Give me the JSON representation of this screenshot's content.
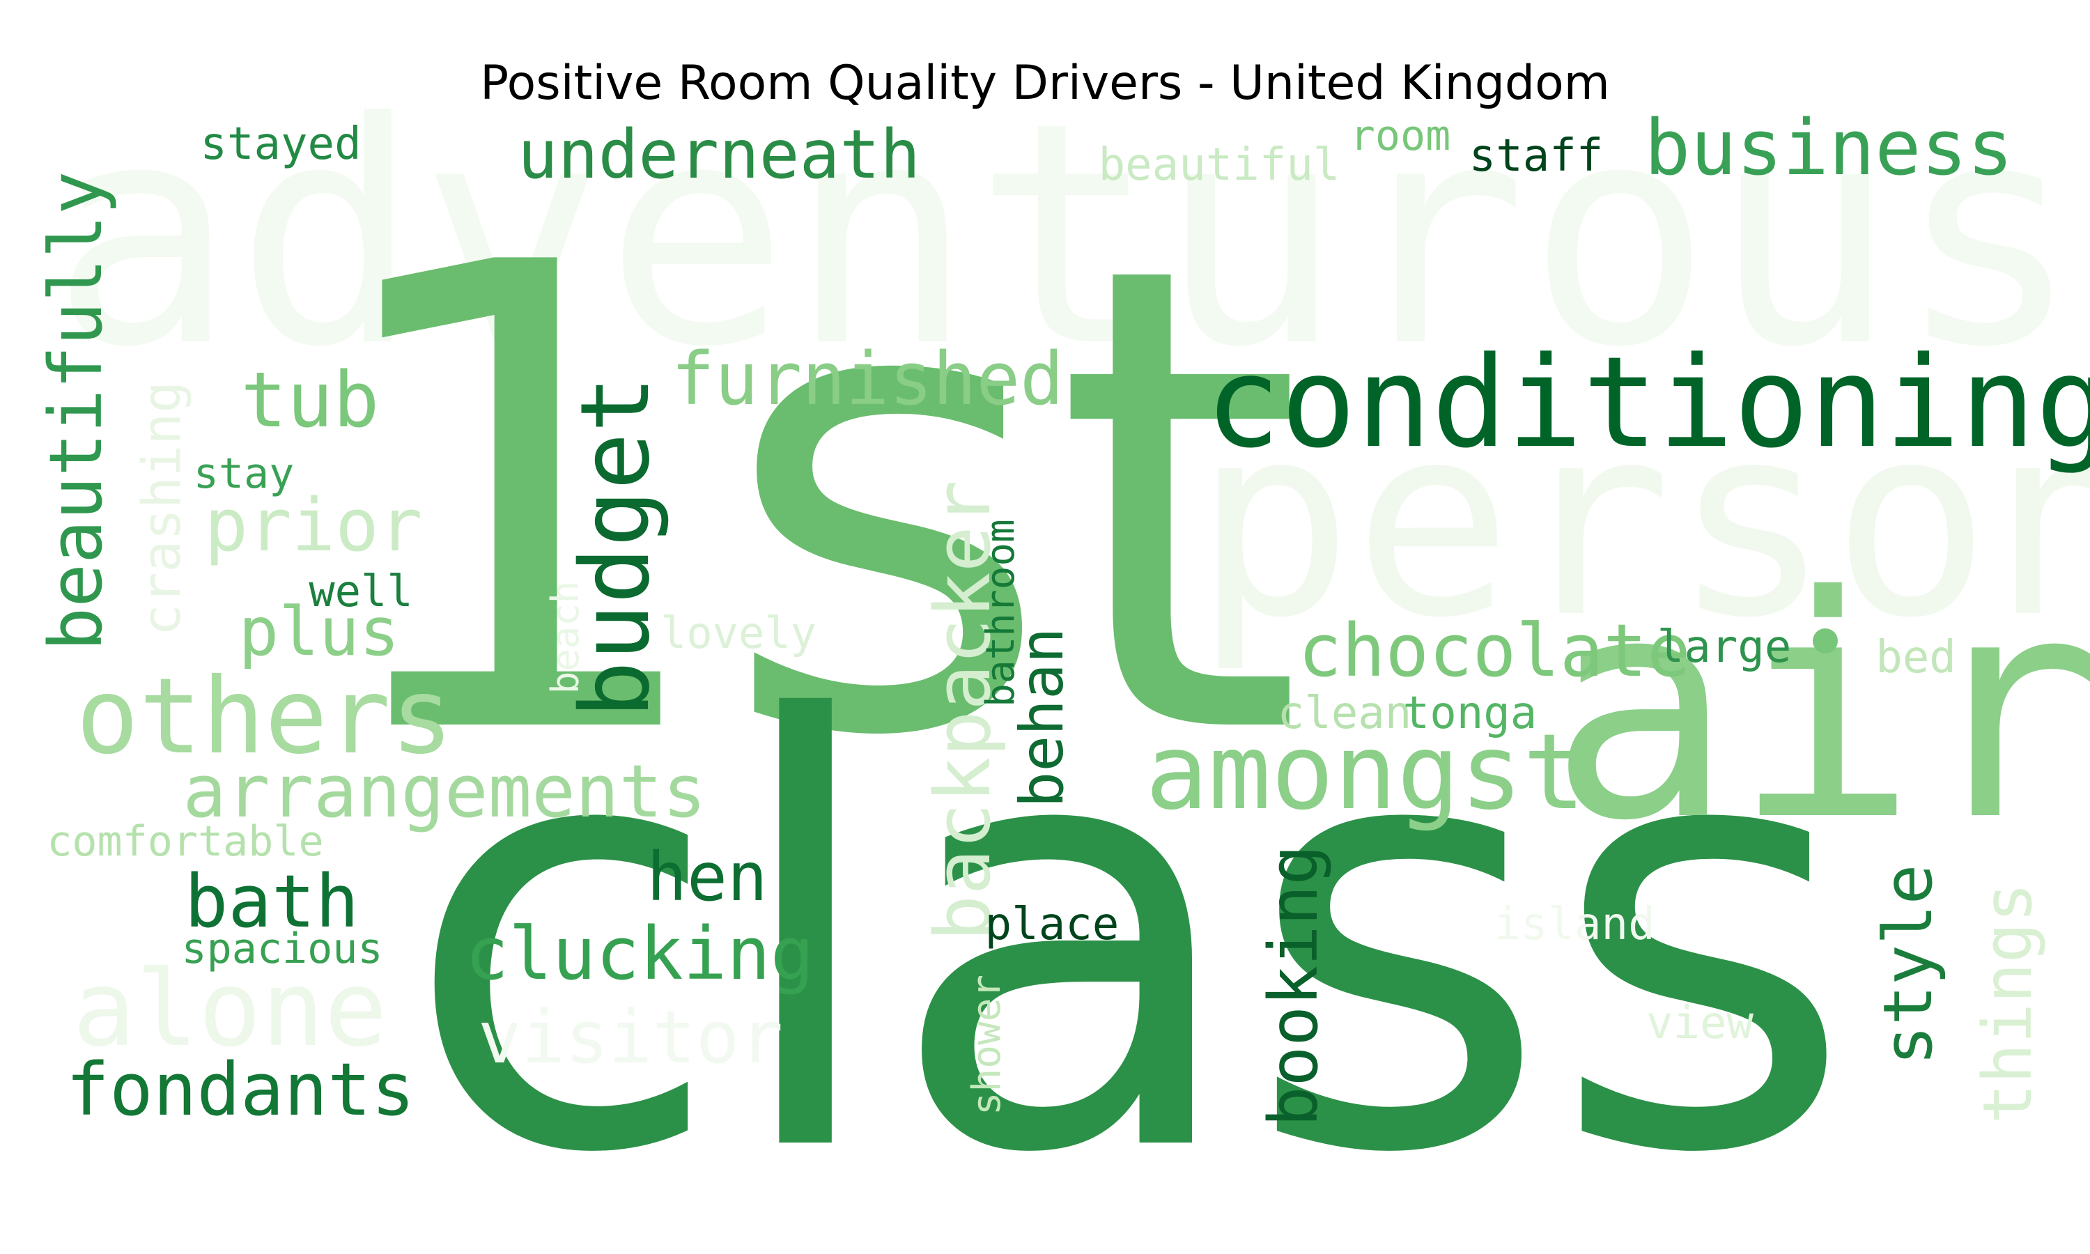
{
  "chart_data": {
    "type": "wordcloud",
    "title": "Positive Room Quality Drivers - United Kingdom",
    "colormap": "Greens",
    "words": [
      {
        "text": "adventurous",
        "color": "#f3faf1"
      },
      {
        "text": "person",
        "color": "#f1f9ef"
      },
      {
        "text": "1st",
        "color": "#6abd6e"
      },
      {
        "text": "class",
        "color": "#2c9148"
      },
      {
        "text": "air",
        "color": "#8bcf89"
      },
      {
        "text": "conditioning",
        "color": "#006428"
      },
      {
        "text": "business",
        "color": "#39a156"
      },
      {
        "text": "underneath",
        "color": "#2a8c46"
      },
      {
        "text": "stayed",
        "color": "#228a44"
      },
      {
        "text": "beautiful",
        "color": "#c9eac3"
      },
      {
        "text": "room",
        "color": "#78c679"
      },
      {
        "text": "staff",
        "color": "#00441b"
      },
      {
        "text": "beautifully",
        "color": "#2f974e"
      },
      {
        "text": "crashing",
        "color": "#e8f5e4"
      },
      {
        "text": "tub",
        "color": "#7bc77b"
      },
      {
        "text": "furnished",
        "color": "#89cd87"
      },
      {
        "text": "stay",
        "color": "#39a154"
      },
      {
        "text": "prior",
        "color": "#cbebc5"
      },
      {
        "text": "budget",
        "color": "#0b6a2f"
      },
      {
        "text": "well",
        "color": "#1b7f3e"
      },
      {
        "text": "plus",
        "color": "#8ccf89"
      },
      {
        "text": "beach",
        "color": "#eaf7e6"
      },
      {
        "text": "lovely",
        "color": "#dcf1d7"
      },
      {
        "text": "backpacker",
        "color": "#d4eecf"
      },
      {
        "text": "bathroom",
        "color": "#157938"
      },
      {
        "text": "behan",
        "color": "#0e6b32"
      },
      {
        "text": "others",
        "color": "#a7dba0"
      },
      {
        "text": "chocolate",
        "color": "#7ec87c"
      },
      {
        "text": "large",
        "color": "#2e934c"
      },
      {
        "text": "bed",
        "color": "#c2e6ba"
      },
      {
        "text": "clean",
        "color": "#b6e1ae"
      },
      {
        "text": "tonga",
        "color": "#54b565"
      },
      {
        "text": "amongst",
        "color": "#8ccf89"
      },
      {
        "text": "arrangements",
        "color": "#a4d99e"
      },
      {
        "text": "comfortable",
        "color": "#b5e1ad"
      },
      {
        "text": "hen",
        "color": "#0d6e31"
      },
      {
        "text": "bath",
        "color": "#0f7235"
      },
      {
        "text": "booking",
        "color": "#0a602a"
      },
      {
        "text": "style",
        "color": "#1b7d3b"
      },
      {
        "text": "things",
        "color": "#d9f0d3"
      },
      {
        "text": "place",
        "color": "#00441b"
      },
      {
        "text": "clucking",
        "color": "#36a151"
      },
      {
        "text": "island",
        "color": "#f1f9ef"
      },
      {
        "text": "spacious",
        "color": "#37a052"
      },
      {
        "text": "shower",
        "color": "#c4e7bb"
      },
      {
        "text": "view",
        "color": "#e0f3db"
      },
      {
        "text": "alone",
        "color": "#edf7ea"
      },
      {
        "text": "visitor",
        "color": "#f2f9f0"
      },
      {
        "text": "fondants",
        "color": "#137735"
      }
    ]
  }
}
